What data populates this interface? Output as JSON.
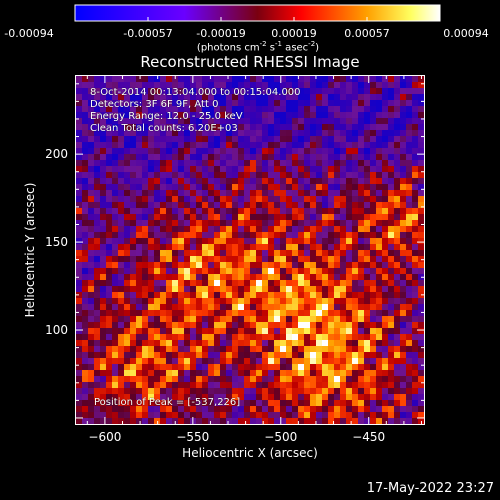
{
  "colorbar": {
    "tick_labels": [
      "-0.00094",
      "-0.00057",
      "-0.00019",
      "0.00019",
      "0.00057",
      "0.00094"
    ],
    "units_main": "(photons cm",
    "units_exp1": "-2",
    "units_mid1": " s",
    "units_exp2": "-1",
    "units_mid2": " asec",
    "units_exp3": "-2",
    "units_end": ")"
  },
  "chart_data": {
    "type": "heatmap",
    "title": "Reconstructed RHESSI Image",
    "xlabel": "Heliocentric X (arcsec)",
    "ylabel": "Heliocentric Y (arcsec)",
    "xlim": [
      -617,
      -418
    ],
    "ylim": [
      46,
      245
    ],
    "xticks": [
      -600,
      -550,
      -500,
      -450
    ],
    "xtick_labels": [
      "−600",
      "−550",
      "−500",
      "−450"
    ],
    "yticks": [
      100,
      150,
      200
    ],
    "ytick_labels": [
      "100",
      "150",
      "200"
    ],
    "zlim": [
      -0.00094,
      0.00094
    ],
    "colormap": "blue-purple-red-yellow-white",
    "annotations": [
      "8-Oct-2014 00:13:04.000 to 00:15:04.000",
      "Detectors: 3F 6F 9F, Att 0",
      "Energy Range: 12.0 - 25.0 keV",
      "Clean     Total counts: 6.20E+03",
      "Position of Peak = [-537,226]"
    ]
  },
  "footer": {
    "timestamp": "17-May-2022 23:27"
  },
  "colors": {
    "background": "#000000",
    "foreground": "#ffffff"
  }
}
